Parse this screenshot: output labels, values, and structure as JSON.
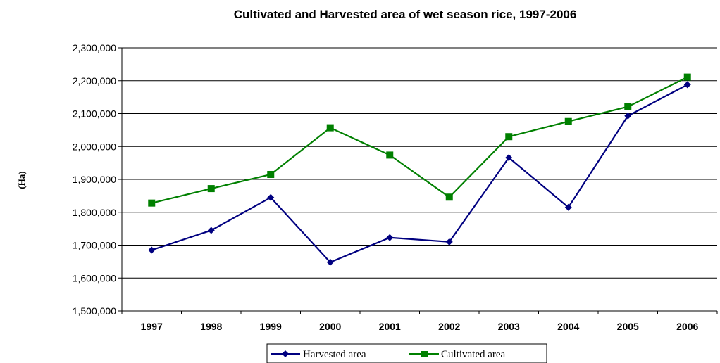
{
  "chart_data": {
    "type": "line",
    "title": "Cultivated and Harvested area of wet season rice, 1997-2006",
    "xlabel": "",
    "ylabel": "(Ha)",
    "categories": [
      "1997",
      "1998",
      "1999",
      "2000",
      "2001",
      "2002",
      "2003",
      "2004",
      "2005",
      "2006"
    ],
    "y_tick_values": [
      1500000,
      1600000,
      1700000,
      1800000,
      1900000,
      2000000,
      2100000,
      2200000,
      2300000
    ],
    "y_tick_labels": [
      "1,500,000",
      "1,600,000",
      "1,700,000",
      "1,800,000",
      "1,900,000",
      "2,000,000",
      "2,100,000",
      "2,200,000",
      "2,300,000"
    ],
    "ylim": [
      1500000,
      2300000
    ],
    "grid": "horizontal",
    "legend_position": "bottom",
    "series": [
      {
        "name": "Harvested area",
        "color": "#000080",
        "marker": "diamond",
        "values": [
          1685000,
          1745000,
          1845000,
          1648000,
          1723000,
          1710000,
          1966000,
          1815000,
          2093000,
          2188000
        ]
      },
      {
        "name": "Cultivated area",
        "color": "#008000",
        "marker": "square",
        "values": [
          1828000,
          1872000,
          1915000,
          2057000,
          1974000,
          1846000,
          2030000,
          2076000,
          2121000,
          2211000
        ]
      }
    ]
  }
}
